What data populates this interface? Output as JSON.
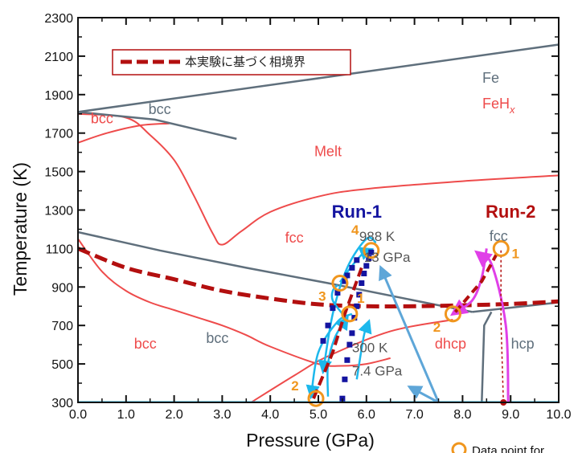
{
  "chart_data": {
    "type": "line",
    "xlabel": "Pressure (GPa)",
    "ylabel": "Temperature (K)",
    "xlim": [
      0,
      10
    ],
    "ylim": [
      300,
      2300
    ],
    "x_ticks": [
      "0.0",
      "1.0",
      "2.0",
      "3.0",
      "4.0",
      "5.0",
      "6.0",
      "7.0",
      "8.0",
      "9.0",
      "10.0"
    ],
    "y_ticks": [
      "300",
      "500",
      "700",
      "900",
      "1100",
      "1300",
      "1500",
      "1700",
      "1900",
      "2100",
      "2300"
    ],
    "legend": {
      "label": "本実験に基づく相境界",
      "placement": "top-left"
    },
    "key": {
      "fe": "Fe",
      "feh": "FeH",
      "feh_sub": "x"
    },
    "colors": {
      "fe": "#5f6f7c",
      "feh": "#ee4b4b",
      "boundary": "#b30f0f",
      "run1": "#1414a0",
      "run2": "#b30f0f",
      "path1": "#1cb8ec",
      "path2": "#e040e8",
      "circle": "#f0961e",
      "arrow": "#5ea6d8"
    },
    "series": [
      {
        "name": "本実験に基づく相境界",
        "color": "#b30f0f",
        "style": "dashed",
        "x": [
          0,
          1,
          2,
          3,
          4,
          5,
          6,
          7,
          8,
          9,
          10
        ],
        "y": [
          1100,
          1000,
          940,
          880,
          840,
          810,
          800,
          800,
          805,
          812,
          825
        ]
      }
    ],
    "fe_boundaries": [
      {
        "x": [
          0,
          10
        ],
        "y": [
          1810,
          2160
        ]
      },
      {
        "x": [
          0,
          1.6,
          3.3
        ],
        "y": [
          1810,
          1770,
          1670
        ]
      },
      {
        "x": [
          0,
          1.7,
          3.5,
          5.2,
          7.2,
          8.2
        ],
        "y": [
          1185,
          1090,
          1000,
          920,
          820,
          770
        ]
      },
      {
        "x": [
          8.2,
          10
        ],
        "y": [
          770,
          820
        ]
      },
      {
        "x": [
          8.6,
          8.45,
          8.4
        ],
        "y": [
          770,
          700,
          300
        ]
      }
    ],
    "feh_boundaries": [
      {
        "x": [
          0,
          1.0,
          1.5,
          2.0,
          2.4,
          2.8,
          3.0,
          3.4,
          4.0,
          5.0,
          6.0,
          8.0,
          10.0
        ],
        "y": [
          1800,
          1780,
          1690,
          1560,
          1380,
          1180,
          1120,
          1190,
          1290,
          1370,
          1410,
          1450,
          1480
        ]
      },
      {
        "x": [
          0,
          0.6,
          1.3,
          1.9
        ],
        "y": [
          1650,
          1700,
          1740,
          1750
        ]
      },
      {
        "x": [
          0,
          0.5,
          1.0,
          1.5,
          2.0,
          2.5,
          3.0,
          3.5,
          4.0,
          5.0,
          5.5,
          6.0,
          6.5
        ],
        "y": [
          1150,
          980,
          880,
          820,
          780,
          740,
          700,
          650,
          590,
          500,
          490,
          500,
          530
        ]
      },
      {
        "x": [
          3.6,
          4.5,
          5.2,
          6.5,
          7.8
        ],
        "y": [
          300,
          440,
          540,
          670,
          730
        ]
      },
      {
        "x": [
          0,
          10
        ],
        "y": [
          302,
          302
        ]
      }
    ],
    "phase_labels": [
      {
        "text": "bcc",
        "x": 1.7,
        "y": 1800,
        "group": "fe"
      },
      {
        "text": "bcc",
        "x": 0.5,
        "y": 1750,
        "group": "feh"
      },
      {
        "text": "Melt",
        "x": 5.2,
        "y": 1580,
        "group": "feh"
      },
      {
        "text": "fcc",
        "x": 4.5,
        "y": 1130,
        "group": "feh"
      },
      {
        "text": "bcc",
        "x": 1.4,
        "y": 580,
        "group": "feh"
      },
      {
        "text": "bcc",
        "x": 2.9,
        "y": 610,
        "group": "fe"
      },
      {
        "text": "fcc",
        "x": 8.75,
        "y": 1140,
        "group": "fe"
      },
      {
        "text": "dhcp",
        "x": 7.75,
        "y": 580,
        "group": "feh"
      },
      {
        "text": "hcp",
        "x": 9.25,
        "y": 580,
        "group": "fe"
      }
    ],
    "runs": [
      {
        "name": "Run-1",
        "x": 5.8,
        "y": 1260,
        "conditions": {
          "top": [
            "988 K",
            "13 GPa"
          ],
          "bottom": [
            "300 K",
            "7.4 GPa"
          ]
        },
        "points": [
          {
            "label": "1",
            "x": 5.65,
            "y": 760
          },
          {
            "label": "2",
            "x": 4.95,
            "y": 320
          },
          {
            "label": "3",
            "x": 5.45,
            "y": 920
          },
          {
            "label": "4",
            "x": 6.1,
            "y": 1090
          }
        ],
        "data_x": [
          5.5,
          5.55,
          5.6,
          5.65,
          5.7,
          5.75,
          5.8,
          5.85,
          5.9,
          5.95,
          6.0,
          6.05,
          6.1,
          5.1,
          5.2,
          5.3,
          5.4,
          5.55,
          5.6,
          5.7,
          5.8
        ],
        "data_y": [
          320,
          420,
          520,
          600,
          660,
          740,
          800,
          860,
          920,
          970,
          1010,
          1050,
          1080,
          620,
          700,
          790,
          870,
          930,
          960,
          1000,
          1040
        ]
      },
      {
        "name": "Run-2",
        "x": 9.0,
        "y": 1260,
        "points": [
          {
            "label": "1",
            "x": 8.8,
            "y": 1100
          },
          {
            "label": "2",
            "x": 7.8,
            "y": 760
          }
        ]
      }
    ],
    "arrows": [
      {
        "x": [
          7.5,
          6.3
        ],
        "y": [
          300,
          1000
        ]
      },
      {
        "x": [
          7.5,
          6.9
        ],
        "y": [
          300,
          380
        ]
      }
    ],
    "footnote": "Data point for"
  }
}
